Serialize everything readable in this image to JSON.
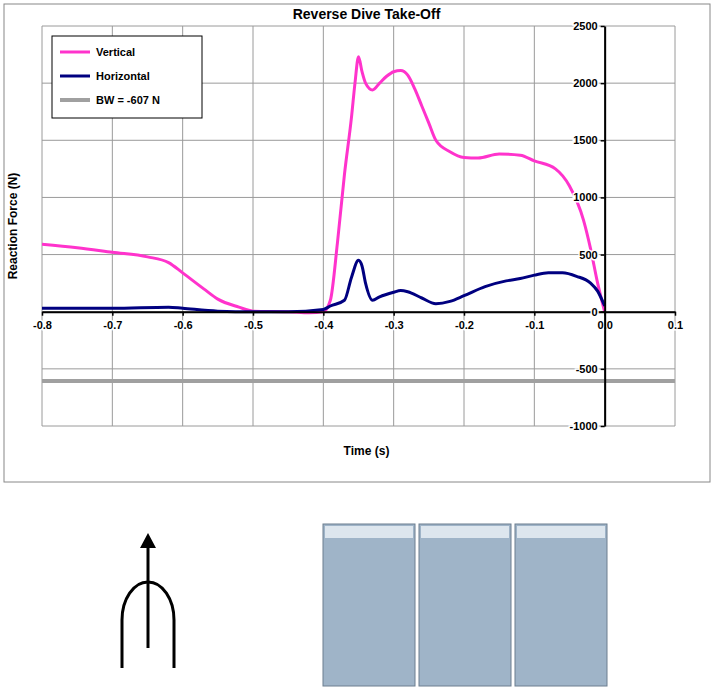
{
  "chart_data": {
    "type": "line",
    "title": "Reverse Dive Take-Off",
    "x_label": "Time (s)",
    "y_label": "Reaction Force (N)",
    "xlim": [
      -0.8,
      0.1
    ],
    "xticks": [
      -0.8,
      -0.7,
      -0.6,
      -0.5,
      -0.4,
      -0.3,
      -0.2,
      -0.1,
      {
        "value": 0,
        "label": "0.0"
      },
      0.1
    ],
    "ylim": [
      -1000,
      2500
    ],
    "yticks": [
      -1000,
      -500,
      0,
      500,
      1000,
      1500,
      2000,
      2500
    ],
    "grid": true,
    "legend": "top-left",
    "series": [
      {
        "name": "Vertical",
        "color": "#ff33cc",
        "x": [
          -0.8,
          -0.75,
          -0.7,
          -0.65,
          -0.62,
          -0.6,
          -0.57,
          -0.55,
          -0.52,
          -0.5,
          -0.45,
          -0.42,
          -0.4,
          -0.39,
          -0.38,
          -0.37,
          -0.36,
          -0.355,
          -0.35,
          -0.345,
          -0.34,
          -0.33,
          -0.32,
          -0.31,
          -0.3,
          -0.29,
          -0.28,
          -0.27,
          -0.26,
          -0.25,
          -0.24,
          -0.22,
          -0.2,
          -0.18,
          -0.15,
          -0.12,
          -0.1,
          -0.07,
          -0.05,
          -0.03,
          -0.02,
          -0.01,
          0
        ],
        "values": [
          590,
          560,
          520,
          480,
          430,
          340,
          200,
          110,
          40,
          5,
          0,
          -10,
          0,
          100,
          600,
          1200,
          1700,
          2000,
          2230,
          2100,
          2000,
          1940,
          2000,
          2060,
          2100,
          2110,
          2070,
          1950,
          1800,
          1650,
          1500,
          1400,
          1350,
          1345,
          1380,
          1370,
          1320,
          1250,
          1100,
          800,
          550,
          250,
          0
        ]
      },
      {
        "name": "Horizontal",
        "color": "#000080",
        "x": [
          -0.8,
          -0.7,
          -0.62,
          -0.6,
          -0.55,
          -0.5,
          -0.45,
          -0.4,
          -0.39,
          -0.37,
          -0.36,
          -0.35,
          -0.345,
          -0.34,
          -0.33,
          -0.32,
          -0.3,
          -0.29,
          -0.28,
          -0.26,
          -0.24,
          -0.22,
          -0.2,
          -0.17,
          -0.14,
          -0.12,
          -0.1,
          -0.08,
          -0.06,
          -0.04,
          -0.02,
          -0.01,
          0
        ],
        "values": [
          30,
          30,
          40,
          30,
          5,
          0,
          0,
          20,
          50,
          100,
          300,
          450,
          400,
          250,
          100,
          130,
          170,
          185,
          175,
          120,
          70,
          90,
          140,
          220,
          270,
          290,
          320,
          340,
          340,
          310,
          250,
          180,
          50
        ]
      },
      {
        "name": "BW = -607 N",
        "color": "#a0a0a0",
        "x": [
          -0.8,
          0.1
        ],
        "values": [
          -607,
          -607
        ]
      }
    ]
  }
}
